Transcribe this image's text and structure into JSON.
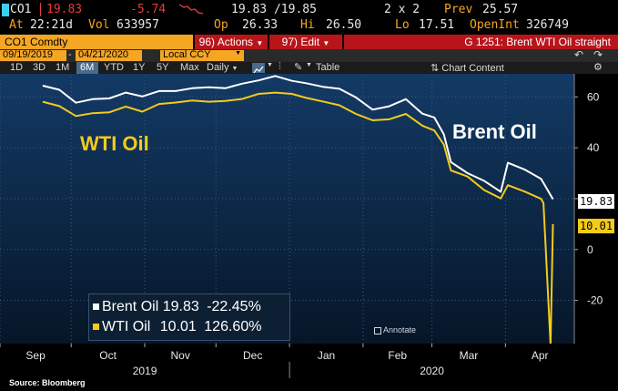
{
  "ticker": {
    "symbol": "CO1",
    "last": "19.83",
    "change": "-5.74",
    "bid_ask": "19.83 /19.85",
    "size": "2 x 2",
    "prev_label": "Prev",
    "prev": "25.57",
    "at_label": "At",
    "time": "22:21d",
    "vol_label": "Vol",
    "vol": "633957",
    "op_label": "Op",
    "open": "26.33",
    "hi_label": "Hi",
    "high": "26.50",
    "lo_label": "Lo",
    "low": "17.51",
    "oi_label": "OpenInt",
    "open_interest": "326749"
  },
  "command": {
    "security": "CO1 Comdty",
    "actions_num": "96)",
    "actions_label": "Actions",
    "edit_num": "97)",
    "edit_label": "Edit",
    "title": "G 1251: Brent WTI Oil straight"
  },
  "toolbar": {
    "start_date": "09/19/2019",
    "end_date": "04/21/2020",
    "currency": "Local CCY",
    "periods": [
      "1D",
      "3D",
      "1M",
      "6M",
      "YTD",
      "1Y",
      "5Y",
      "Max"
    ],
    "active_period": "6M",
    "frequency": "Daily",
    "table_label": "Table",
    "chart_content_label": "Chart Content",
    "icons": [
      "line-chart-icon",
      "bars-icon",
      "pencil-icon",
      "undo-icon",
      "redo-icon",
      "gear-icon"
    ]
  },
  "chart_data": {
    "type": "line",
    "y_ticks": [
      "60",
      "40",
      "20",
      "0",
      "-20"
    ],
    "ylim": [
      -37,
      68
    ],
    "x_months": [
      "Sep",
      "Oct",
      "Nov",
      "Dec",
      "Jan",
      "Feb",
      "Mar",
      "Apr"
    ],
    "x_years": [
      "2019",
      "2020"
    ],
    "grid": true,
    "series": [
      {
        "name": "Brent Oil",
        "color": "#ffffff",
        "last_value": "19.83",
        "pct_change": "-22.45%",
        "x": [
          "2019-09-19",
          "2019-09-26",
          "2019-10-03",
          "2019-10-10",
          "2019-10-17",
          "2019-10-24",
          "2019-10-31",
          "2019-11-07",
          "2019-11-14",
          "2019-11-21",
          "2019-11-28",
          "2019-12-05",
          "2019-12-12",
          "2019-12-19",
          "2019-12-26",
          "2020-01-02",
          "2020-01-08",
          "2020-01-15",
          "2020-01-22",
          "2020-01-29",
          "2020-02-05",
          "2020-02-12",
          "2020-02-19",
          "2020-02-26",
          "2020-03-02",
          "2020-03-06",
          "2020-03-09",
          "2020-03-16",
          "2020-03-23",
          "2020-03-30",
          "2020-04-02",
          "2020-04-09",
          "2020-04-16",
          "2020-04-21"
        ],
        "values": [
          64.4,
          62.8,
          57.7,
          59.1,
          59.4,
          61.7,
          60.2,
          62.3,
          62.3,
          63.4,
          63.8,
          63.4,
          65.2,
          66.5,
          68.2,
          66.3,
          65.4,
          64.0,
          63.2,
          59.8,
          55.0,
          56.3,
          59.1,
          53.4,
          51.9,
          45.3,
          34.4,
          30.0,
          27.0,
          22.7,
          34.1,
          31.5,
          27.8,
          19.8
        ]
      },
      {
        "name": "WTI Oil",
        "color": "#f4cb1a",
        "last_value": "10.01",
        "pct_change": "126.60%",
        "x": [
          "2019-09-19",
          "2019-09-26",
          "2019-10-03",
          "2019-10-10",
          "2019-10-17",
          "2019-10-24",
          "2019-10-31",
          "2019-11-07",
          "2019-11-14",
          "2019-11-21",
          "2019-11-28",
          "2019-12-05",
          "2019-12-12",
          "2019-12-19",
          "2019-12-26",
          "2020-01-02",
          "2020-01-08",
          "2020-01-15",
          "2020-01-22",
          "2020-01-29",
          "2020-02-05",
          "2020-02-12",
          "2020-02-19",
          "2020-02-26",
          "2020-03-02",
          "2020-03-06",
          "2020-03-09",
          "2020-03-16",
          "2020-03-23",
          "2020-03-30",
          "2020-04-02",
          "2020-04-09",
          "2020-04-16",
          "2020-04-17",
          "2020-04-20",
          "2020-04-21"
        ],
        "values": [
          58.1,
          56.4,
          52.5,
          53.6,
          53.9,
          56.2,
          54.2,
          57.2,
          57.8,
          58.6,
          58.1,
          58.4,
          59.2,
          61.2,
          61.7,
          61.2,
          59.6,
          58.2,
          56.7,
          53.3,
          50.8,
          51.2,
          53.3,
          48.7,
          46.8,
          41.3,
          31.1,
          28.7,
          23.4,
          20.1,
          25.3,
          22.8,
          19.9,
          18.3,
          -37.6,
          10.0
        ]
      }
    ],
    "labels": [
      "WTI Oil",
      "Brent Oil"
    ],
    "legend_placement": "bottom-left"
  },
  "annotate_label": "Annotate",
  "source": "Source: Bloomberg",
  "colors": {
    "orange": "#f5a623",
    "red": "#b8151b",
    "plot_bg": "#0a2540",
    "brent": "#ffffff",
    "wti": "#f4cb1a",
    "up": "#e83a3a"
  }
}
